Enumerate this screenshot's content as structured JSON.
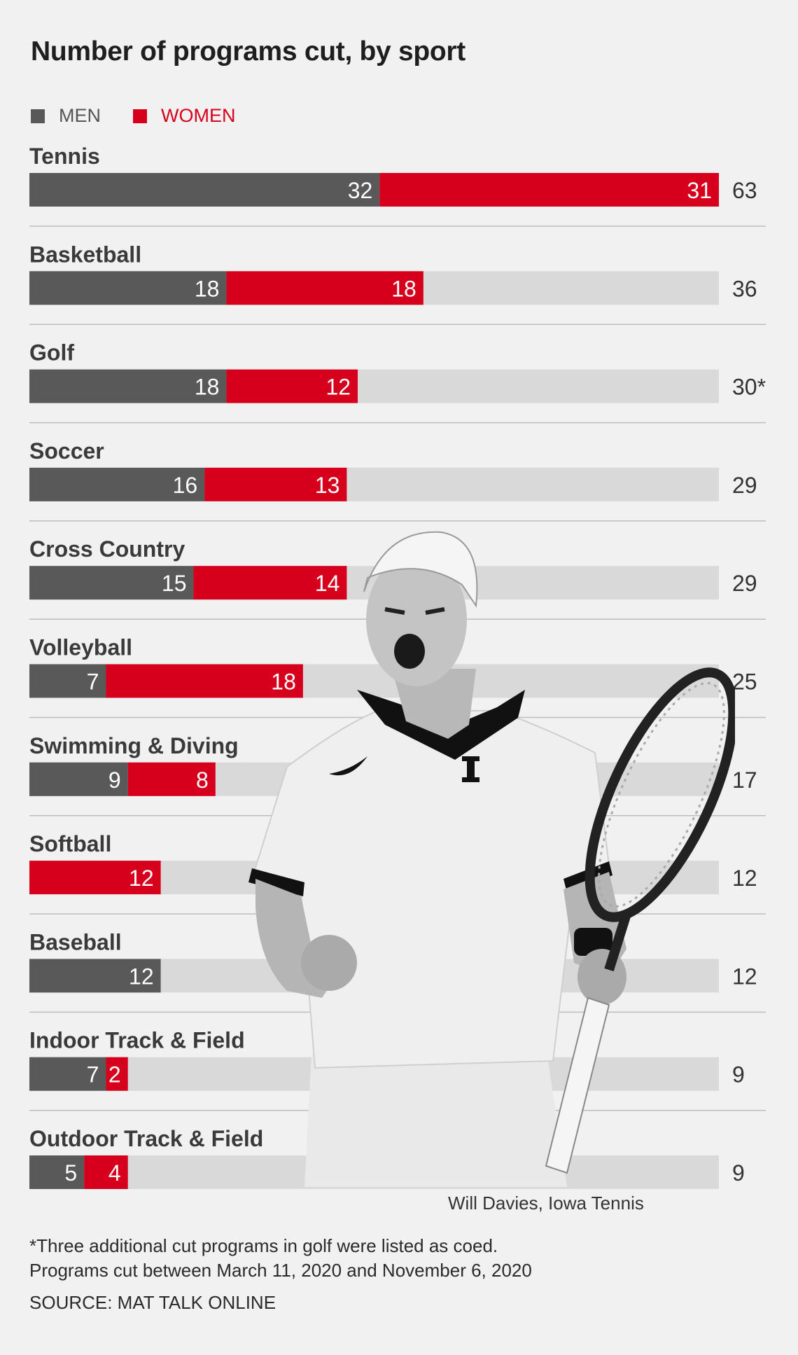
{
  "title": "Number of programs cut, by sport",
  "legend": {
    "men": "MEN",
    "women": "WOMEN"
  },
  "colors": {
    "men": "#595959",
    "women": "#d6001c",
    "track": "#d9d9d9",
    "background": "#f1f1f1",
    "divider": "#bdbdbd"
  },
  "chart_data": {
    "type": "bar",
    "orientation": "horizontal",
    "stacked": true,
    "xlim": [
      0,
      63
    ],
    "grid": false,
    "legend_placement": "top-left",
    "categories": [
      "Tennis",
      "Basketball",
      "Golf",
      "Soccer",
      "Cross Country",
      "Volleyball",
      "Swimming & Diving",
      "Softball",
      "Baseball",
      "Indoor Track & Field",
      "Outdoor Track & Field"
    ],
    "series": [
      {
        "name": "MEN",
        "values": [
          32,
          18,
          18,
          16,
          15,
          7,
          9,
          0,
          12,
          7,
          5
        ]
      },
      {
        "name": "WOMEN",
        "values": [
          31,
          18,
          12,
          13,
          14,
          18,
          8,
          12,
          0,
          2,
          4
        ]
      }
    ],
    "totals": [
      "63",
      "36",
      "30*",
      "29",
      "29",
      "25",
      "17",
      "12",
      "12",
      "9",
      "9"
    ]
  },
  "photo": {
    "icon": "tennis-player-photo",
    "credit": "Will Davies, Iowa Tennis"
  },
  "footnote": {
    "line1": "*Three additional cut programs in golf were listed as coed.",
    "line2": "Programs cut between March 11, 2020 and November 6, 2020"
  },
  "source": "SOURCE: MAT TALK ONLINE"
}
